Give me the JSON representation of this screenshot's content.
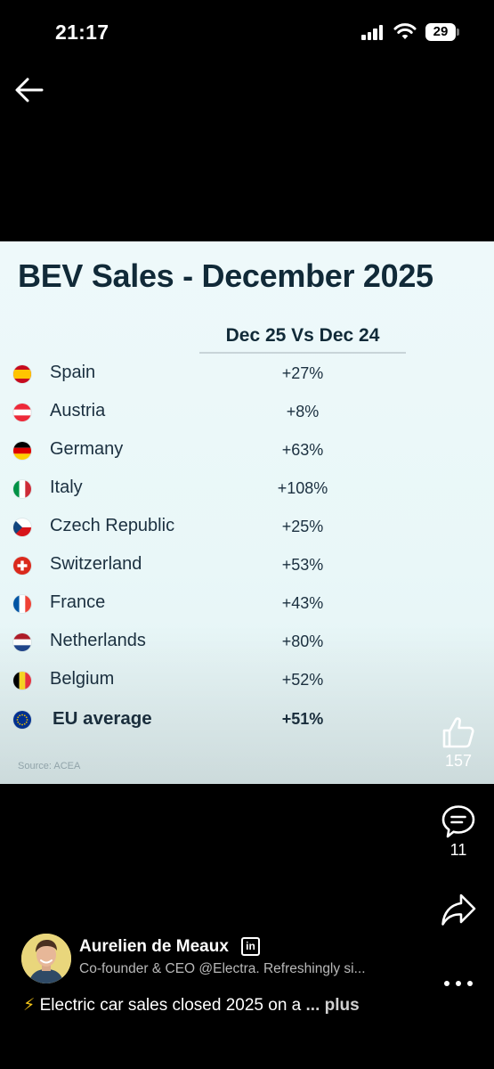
{
  "status_bar": {
    "time": "21:17",
    "battery": "29",
    "icons": [
      "signal-icon",
      "wifi-icon",
      "battery-icon"
    ]
  },
  "navigation": {
    "back_icon": "back-arrow-icon"
  },
  "infographic": {
    "title": "BEV Sales - December 2025",
    "column_header": "Dec 25 Vs Dec 24",
    "rows": [
      {
        "flag": "flag-spain",
        "country": "Spain",
        "change": "+27%"
      },
      {
        "flag": "flag-austria",
        "country": "Austria",
        "change": "+8%"
      },
      {
        "flag": "flag-germany",
        "country": "Germany",
        "change": "+63%"
      },
      {
        "flag": "flag-italy",
        "country": "Italy",
        "change": "+108%"
      },
      {
        "flag": "flag-czech-republic",
        "country": "Czech Republic",
        "change": "+25%"
      },
      {
        "flag": "flag-switzerland",
        "country": "Switzerland",
        "change": "+53%"
      },
      {
        "flag": "flag-france",
        "country": "France",
        "change": "+43%"
      },
      {
        "flag": "flag-netherlands",
        "country": "Netherlands",
        "change": "+80%"
      },
      {
        "flag": "flag-belgium",
        "country": "Belgium",
        "change": "+52%"
      }
    ],
    "total": {
      "flag": "flag-eu",
      "country": "EU average",
      "change": "+51%"
    },
    "source": "Source: ACEA"
  },
  "actions": {
    "like": {
      "icon": "thumbs-up-icon",
      "count": "157"
    },
    "comment": {
      "icon": "comment-icon",
      "count": "11"
    },
    "share": {
      "icon": "share-icon"
    }
  },
  "author": {
    "name": "Aurelien de Meaux",
    "badge": "in",
    "headline": "Co-founder & CEO @Electra. Refreshingly si...",
    "post_emoji": "⚡",
    "post_text": "Electric car sales closed 2025 on a",
    "more_label": "... plus",
    "more_icon": "more-options-icon"
  }
}
